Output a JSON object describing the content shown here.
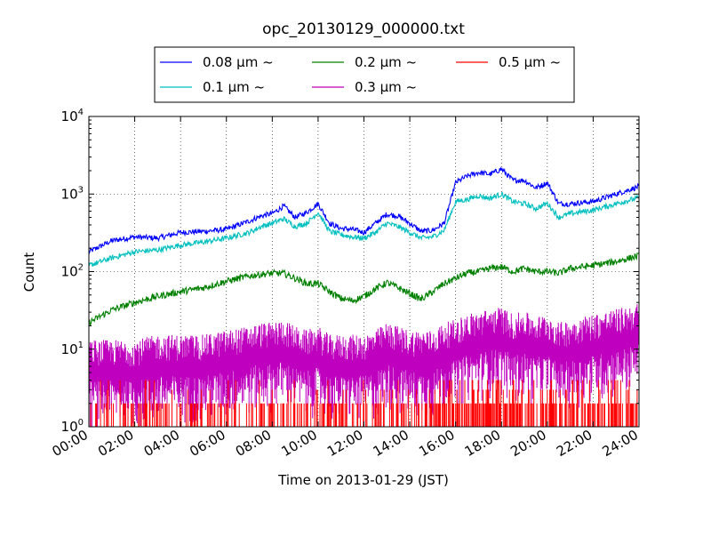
{
  "chart_data": {
    "type": "line",
    "title": "opc_20130129_000000.txt",
    "xlabel": "Time on 2013-01-29 (JST)",
    "ylabel": "Count",
    "yscale": "log",
    "ylim": [
      1,
      10000
    ],
    "xlim": [
      "00:00",
      "24:00"
    ],
    "grid": true,
    "legend_position": "top, above plot",
    "x_ticks": [
      "00:00",
      "02:00",
      "04:00",
      "06:00",
      "08:00",
      "10:00",
      "12:00",
      "14:00",
      "16:00",
      "18:00",
      "20:00",
      "22:00",
      "24:00"
    ],
    "y_ticks": [
      {
        "base": "10",
        "exp": "0",
        "value": 1
      },
      {
        "base": "10",
        "exp": "1",
        "value": 10
      },
      {
        "base": "10",
        "exp": "2",
        "value": 100
      },
      {
        "base": "10",
        "exp": "3",
        "value": 1000
      },
      {
        "base": "10",
        "exp": "4",
        "value": 10000
      }
    ],
    "x_hours": [
      0,
      1,
      2,
      3,
      4,
      5,
      6,
      7,
      7.5,
      8,
      8.5,
      9,
      9.5,
      10,
      10.5,
      11,
      11.5,
      12,
      12.5,
      13,
      13.5,
      14,
      14.5,
      15,
      15.5,
      16,
      16.5,
      17,
      17.5,
      18,
      18.5,
      19,
      19.5,
      20,
      20.5,
      21,
      22,
      23,
      24
    ],
    "series": [
      {
        "name": "0.08 μm ~",
        "color": "#0000ff",
        "values": [
          180,
          250,
          280,
          270,
          320,
          330,
          350,
          450,
          520,
          560,
          700,
          500,
          580,
          750,
          420,
          360,
          350,
          320,
          420,
          550,
          520,
          420,
          330,
          340,
          420,
          1400,
          1700,
          1900,
          1800,
          2100,
          1500,
          1500,
          1200,
          1400,
          750,
          750,
          800,
          1000,
          1250
        ]
      },
      {
        "name": "0.1 μm ~",
        "color": "#00bfbf",
        "values": [
          120,
          150,
          180,
          190,
          220,
          240,
          270,
          320,
          380,
          420,
          480,
          380,
          420,
          580,
          330,
          300,
          280,
          270,
          320,
          420,
          380,
          320,
          270,
          280,
          340,
          800,
          850,
          950,
          880,
          1000,
          800,
          750,
          650,
          760,
          500,
          560,
          620,
          750,
          900
        ]
      },
      {
        "name": "0.2 μm ~",
        "color": "#008000",
        "values": [
          22,
          32,
          40,
          48,
          55,
          62,
          75,
          88,
          92,
          95,
          95,
          82,
          70,
          70,
          55,
          45,
          42,
          48,
          60,
          72,
          62,
          52,
          44,
          55,
          70,
          82,
          95,
          100,
          110,
          115,
          100,
          110,
          100,
          100,
          95,
          110,
          120,
          135,
          160
        ]
      },
      {
        "name": "0.3 μm ~",
        "color": "#bf00bf",
        "values": [
          6,
          6,
          6,
          7,
          7,
          7,
          8,
          9,
          10,
          10,
          11,
          9,
          8,
          9,
          7,
          7,
          7,
          7,
          8,
          10,
          9,
          8,
          8,
          8,
          10,
          11,
          13,
          14,
          15,
          16,
          13,
          14,
          12,
          13,
          10,
          11,
          13,
          15,
          18
        ]
      },
      {
        "name": "0.5 μm ~",
        "color": "#ff0000",
        "values": [
          1,
          1,
          1,
          1,
          1,
          1,
          1,
          1,
          1,
          1,
          1,
          1,
          1,
          1,
          1,
          1,
          1,
          1,
          1,
          1,
          1,
          1,
          1,
          1,
          1,
          1,
          1,
          1,
          1,
          1,
          1,
          1,
          1,
          1,
          1,
          1,
          1,
          1,
          1
        ]
      }
    ]
  }
}
